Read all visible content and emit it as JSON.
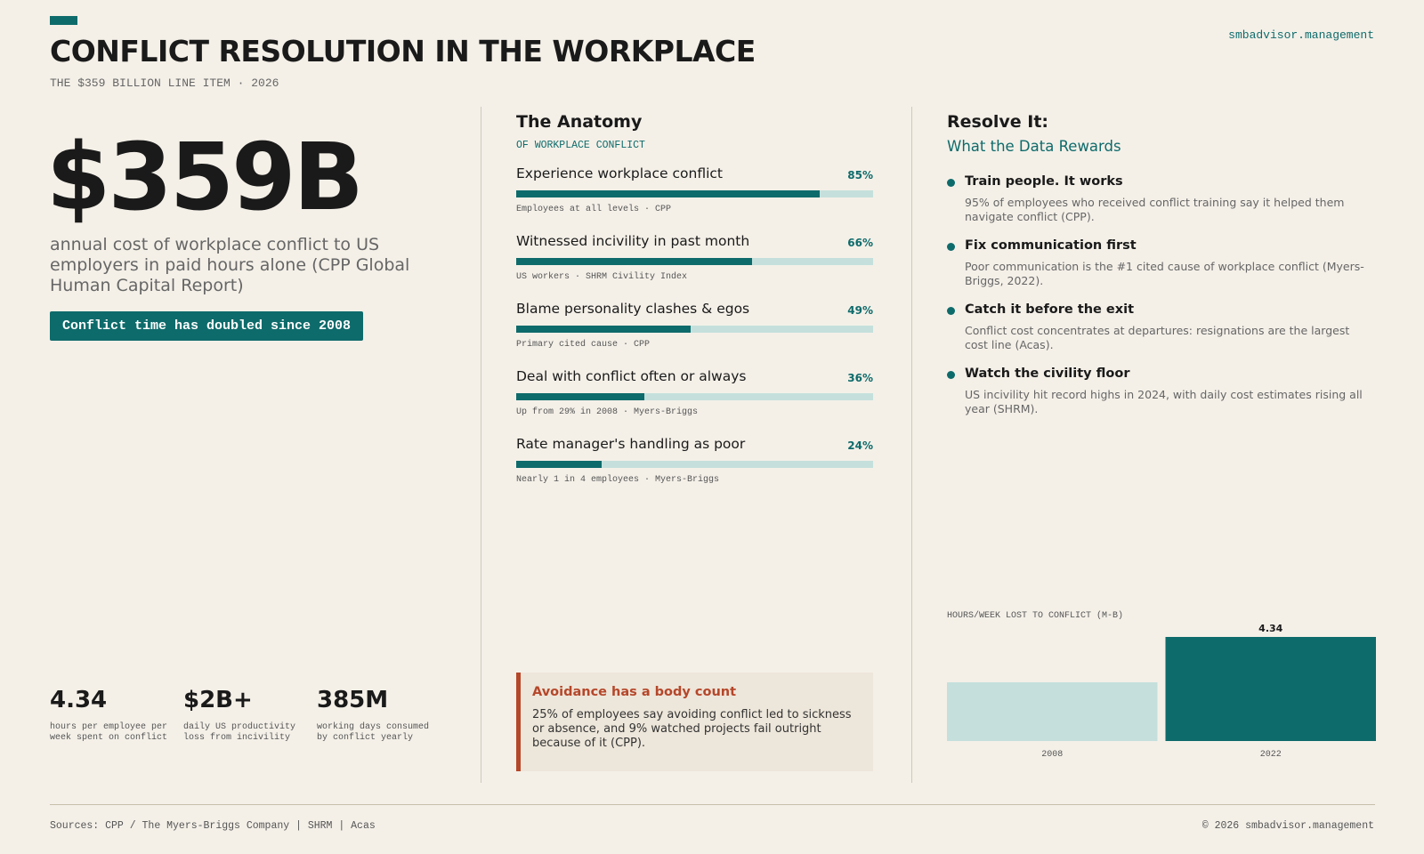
{
  "header": {
    "title": "CONFLICT RESOLUTION IN THE WORKPLACE",
    "subtitle": "THE $359 BILLION LINE ITEM · 2026",
    "site": "smbadvisor.management"
  },
  "hero": {
    "figure": "$359B",
    "description": "annual cost of workplace conflict to US employers in paid hours alone (CPP Global Human Capital Report)",
    "badge": "Conflict time has doubled since 2008"
  },
  "stats": [
    {
      "value": "4.34",
      "label": "hours per employee per week spent on conflict"
    },
    {
      "value": "$2B+",
      "label": "daily US productivity loss from incivility"
    },
    {
      "value": "385M",
      "label": "working days consumed by conflict yearly"
    }
  ],
  "anatomy": {
    "title": "The Anatomy",
    "subtitle": "OF WORKPLACE CONFLICT",
    "xlim": [
      0,
      100
    ],
    "items": [
      {
        "label": "Experience workplace conflict",
        "value": 85,
        "value_label": "85%",
        "note": "Employees at all levels · CPP"
      },
      {
        "label": "Witnessed incivility in past month",
        "value": 66,
        "value_label": "66%",
        "note": "US workers · SHRM Civility Index"
      },
      {
        "label": "Blame personality clashes & egos",
        "value": 49,
        "value_label": "49%",
        "note": "Primary cited cause · CPP"
      },
      {
        "label": "Deal with conflict often or always",
        "value": 36,
        "value_label": "36%",
        "note": "Up from 29% in 2008 · Myers-Briggs"
      },
      {
        "label": "Rate manager's handling as poor",
        "value": 24,
        "value_label": "24%",
        "note": "Nearly 1 in 4 employees · Myers-Briggs"
      }
    ]
  },
  "callout": {
    "title": "Avoidance has a body count",
    "text": "25% of employees say avoiding conflict led to sickness or absence, and 9% watched projects fail outright because of it (CPP)."
  },
  "resolve": {
    "title": "Resolve It:",
    "subtitle": "What the Data Rewards",
    "items": [
      {
        "title": "Train people. It works",
        "text": "95% of employees who received conflict training say it helped them navigate conflict (CPP)."
      },
      {
        "title": "Fix communication first",
        "text": "Poor communication is the #1 cited cause of workplace conflict (Myers-Briggs, 2022)."
      },
      {
        "title": "Catch it before the exit",
        "text": "Conflict cost concentrates at departures: resignations are the largest cost line (Acas)."
      },
      {
        "title": "Watch the civility floor",
        "text": "US incivility hit record highs in 2024, with daily cost estimates rising all year (SHRM)."
      }
    ]
  },
  "chart_data": {
    "type": "bar",
    "title": "HOURS/WEEK LOST TO CONFLICT (M-B)",
    "categories": [
      "2008",
      "2022"
    ],
    "values": [
      2.45,
      4.34
    ],
    "value_labels": [
      null,
      "4.34"
    ],
    "colors": [
      "#c5e0dc",
      "#0e6b6b"
    ]
  },
  "footer": {
    "sources": "Sources: CPP / The Myers-Briggs Company | SHRM | Acas",
    "copyright": "© 2026 smbadvisor.management"
  }
}
